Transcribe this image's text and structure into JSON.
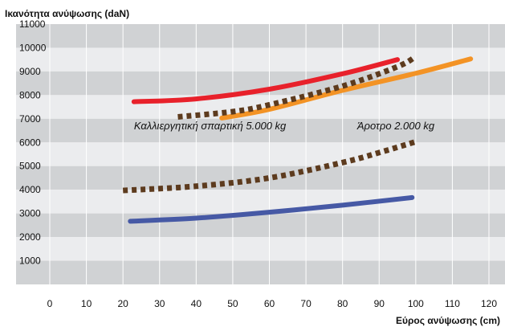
{
  "chart_data": {
    "type": "line",
    "ylabel": "Ικανότητα ανύψωσης (daN)",
    "xlabel": "Εύρος ανύψωσης (cm)",
    "xlim": [
      0,
      120
    ],
    "ylim": [
      0,
      11000
    ],
    "x_ticks": [
      "0",
      "10",
      "20",
      "30",
      "40",
      "50",
      "60",
      "70",
      "80",
      "90",
      "100",
      "110",
      "120"
    ],
    "y_ticks": [
      "1000",
      "2000",
      "3000",
      "4000",
      "5000",
      "6000",
      "7000",
      "8000",
      "9000",
      "10000",
      "11000"
    ],
    "annotations": [
      {
        "text": "Καλλιεργητική σπαρτική 5.000 kg",
        "x": 23,
        "y": 6550
      },
      {
        "text": "Άροτρο 2.000 kg",
        "x": 84,
        "y": 6550
      }
    ],
    "series": [
      {
        "color": "#e8212b",
        "style": "solid",
        "points": [
          [
            23,
            7720
          ],
          [
            40,
            7840
          ],
          [
            60,
            8250
          ],
          [
            80,
            8900
          ],
          [
            95,
            9500
          ]
        ]
      },
      {
        "color": "#f39325",
        "style": "solid",
        "points": [
          [
            47,
            7030
          ],
          [
            60,
            7400
          ],
          [
            80,
            8200
          ],
          [
            100,
            8920
          ],
          [
            115,
            9530
          ]
        ]
      },
      {
        "color": "#5d3b1e",
        "style": "dotted",
        "points": [
          [
            35,
            7080
          ],
          [
            50,
            7300
          ],
          [
            60,
            7590
          ],
          [
            80,
            8380
          ],
          [
            95,
            9200
          ],
          [
            100,
            9630
          ]
        ]
      },
      {
        "color": "#5d3b1e",
        "style": "dotted",
        "points": [
          [
            20,
            3970
          ],
          [
            40,
            4150
          ],
          [
            60,
            4500
          ],
          [
            80,
            5150
          ],
          [
            90,
            5570
          ],
          [
            100,
            6030
          ]
        ]
      },
      {
        "color": "#4659a5",
        "style": "solid",
        "points": [
          [
            22,
            2670
          ],
          [
            40,
            2800
          ],
          [
            60,
            3050
          ],
          [
            80,
            3350
          ],
          [
            99,
            3670
          ]
        ]
      }
    ],
    "grid": "horizontal alternating bands",
    "colors": {
      "band_dark": "#d0d2d4",
      "band_light": "#ebecee",
      "grid_line": "#ffffff"
    }
  }
}
